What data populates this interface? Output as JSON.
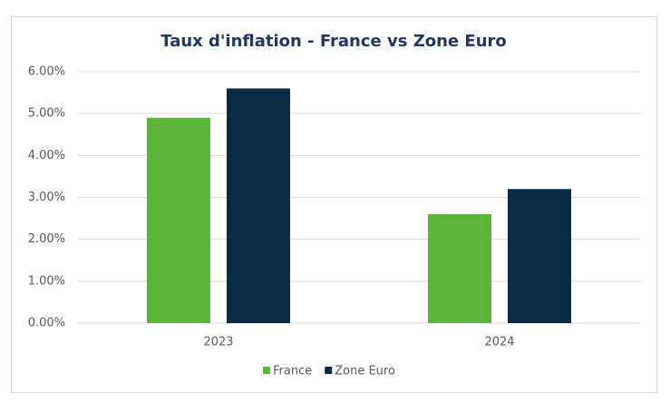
{
  "chart_data": {
    "type": "bar",
    "title": "Taux d'inflation - France vs Zone Euro",
    "categories": [
      "2023",
      "2024"
    ],
    "series": [
      {
        "name": "France",
        "color": "#5db43a",
        "values": [
          4.9,
          2.6
        ]
      },
      {
        "name": "Zone Euro",
        "color": "#082c45",
        "values": [
          5.6,
          3.2
        ]
      }
    ],
    "ylim": [
      0,
      6
    ],
    "yticks": [
      {
        "value": 0,
        "label": "0.00%"
      },
      {
        "value": 1,
        "label": "1.00%"
      },
      {
        "value": 2,
        "label": "2.00%"
      },
      {
        "value": 3,
        "label": "3.00%"
      },
      {
        "value": 4,
        "label": "4.00%"
      },
      {
        "value": 5,
        "label": "5.00%"
      },
      {
        "value": 6,
        "label": "6.00%"
      }
    ],
    "grid": true,
    "legend": "bottom"
  }
}
